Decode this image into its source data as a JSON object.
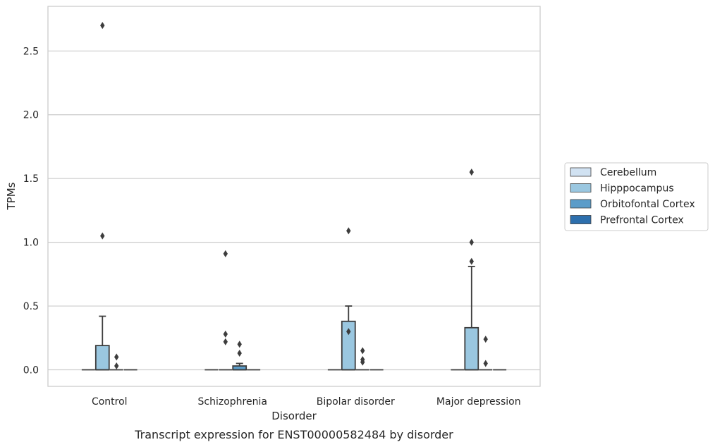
{
  "chart_data": {
    "type": "box",
    "title": "",
    "caption": "Transcript expression for ENST00000582484 by disorder",
    "xlabel": "Disorder",
    "ylabel": "TPMs",
    "ylim": [
      -0.13,
      2.85
    ],
    "yticks": [
      0.0,
      0.5,
      1.0,
      1.5,
      2.0,
      2.5
    ],
    "ytick_labels": [
      "0.0",
      "0.5",
      "1.0",
      "1.5",
      "2.0",
      "2.5"
    ],
    "grid": "horizontal",
    "legend_position": "right",
    "categories": [
      "Control",
      "Schizophrenia",
      "Bipolar disorder",
      "Major depression"
    ],
    "series": [
      {
        "name": "Cerebellum",
        "color": "#d1e2f2",
        "boxes": [
          {
            "q1": 0,
            "median": 0,
            "q3": 0,
            "whisker_low": 0,
            "whisker_high": 0,
            "outliers": []
          },
          {
            "q1": 0,
            "median": 0,
            "q3": 0,
            "whisker_low": 0,
            "whisker_high": 0,
            "outliers": []
          },
          {
            "q1": 0,
            "median": 0,
            "q3": 0,
            "whisker_low": 0,
            "whisker_high": 0,
            "outliers": []
          },
          {
            "q1": 0,
            "median": 0,
            "q3": 0,
            "whisker_low": 0,
            "whisker_high": 0,
            "outliers": []
          }
        ]
      },
      {
        "name": "Hipppocampus",
        "color": "#9ac7e0",
        "boxes": [
          {
            "q1": 0,
            "median": 0,
            "q3": 0.19,
            "whisker_low": 0,
            "whisker_high": 0.42,
            "outliers": [
              1.05,
              2.7
            ]
          },
          {
            "q1": 0,
            "median": 0,
            "q3": 0,
            "whisker_low": 0,
            "whisker_high": 0,
            "outliers": [
              0.22,
              0.28,
              0.91
            ]
          },
          {
            "q1": 0,
            "median": 0,
            "q3": 0.38,
            "whisker_low": 0,
            "whisker_high": 0.5,
            "outliers": [
              0.3,
              1.09
            ]
          },
          {
            "q1": 0,
            "median": 0,
            "q3": 0.33,
            "whisker_low": 0,
            "whisker_high": 0.81,
            "outliers": [
              0.85,
              1.0,
              1.55
            ]
          }
        ]
      },
      {
        "name": "Orbitofontal Cortex",
        "color": "#5b9cc9",
        "boxes": [
          {
            "q1": 0,
            "median": 0,
            "q3": 0,
            "whisker_low": 0,
            "whisker_high": 0,
            "outliers": [
              0.03,
              0.1
            ]
          },
          {
            "q1": 0,
            "median": 0,
            "q3": 0.03,
            "whisker_low": 0,
            "whisker_high": 0.05,
            "outliers": [
              0.13,
              0.2
            ]
          },
          {
            "q1": 0,
            "median": 0,
            "q3": 0,
            "whisker_low": 0,
            "whisker_high": 0,
            "outliers": [
              0.06,
              0.08,
              0.15
            ]
          },
          {
            "q1": 0,
            "median": 0,
            "q3": 0,
            "whisker_low": 0,
            "whisker_high": 0,
            "outliers": [
              0.05,
              0.24
            ]
          }
        ]
      },
      {
        "name": "Prefrontal Cortex",
        "color": "#2d6fad",
        "boxes": [
          {
            "q1": 0,
            "median": 0,
            "q3": 0,
            "whisker_low": 0,
            "whisker_high": 0,
            "outliers": []
          },
          {
            "q1": 0,
            "median": 0,
            "q3": 0,
            "whisker_low": 0,
            "whisker_high": 0,
            "outliers": []
          },
          {
            "q1": 0,
            "median": 0,
            "q3": 0,
            "whisker_low": 0,
            "whisker_high": 0,
            "outliers": []
          },
          {
            "q1": 0,
            "median": 0,
            "q3": 0,
            "whisker_low": 0,
            "whisker_high": 0,
            "outliers": []
          }
        ]
      }
    ]
  }
}
